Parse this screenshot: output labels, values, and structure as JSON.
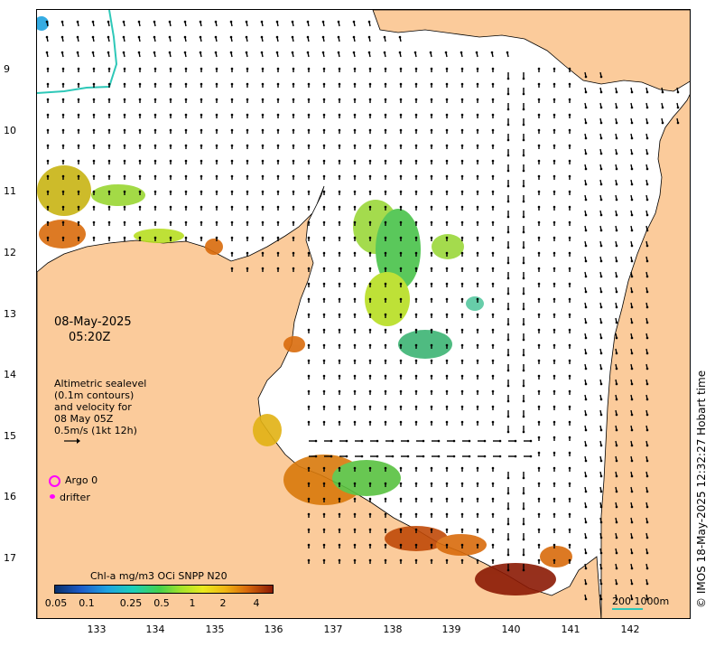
{
  "map": {
    "land_color": "#fbcb9b",
    "sea_color": "#ffffff",
    "y_ticks": [
      "9",
      "10",
      "11",
      "12",
      "13",
      "14",
      "15",
      "16",
      "17"
    ],
    "x_ticks": [
      "133",
      "134",
      "135",
      "136",
      "137",
      "138",
      "139",
      "140",
      "141",
      "142"
    ]
  },
  "date": {
    "line1": "08-May-2025",
    "line2": "05:20Z"
  },
  "velocity_legend": {
    "line1": "Altimetric sealevel",
    "line2": "(0.1m contours)",
    "line3": "and velocity for",
    "line4": "08 May 05Z",
    "line5": "0.5m/s (1kt 12h)"
  },
  "markers": {
    "argo_label": "Argo 0",
    "drifter_label": "drifter",
    "marker_color": "#ff00ff"
  },
  "colorbar": {
    "title": "Chl-a mg/m3 OCi SNPP N20",
    "ticks": [
      "0.05",
      "0.1",
      "0.25",
      "0.5",
      "1",
      "2",
      "4"
    ]
  },
  "scale": {
    "label": "200  1000m",
    "color": "#2ec8b8"
  },
  "credit": "© IMOS 18-May-2025 12:32:27 Hobart time"
}
